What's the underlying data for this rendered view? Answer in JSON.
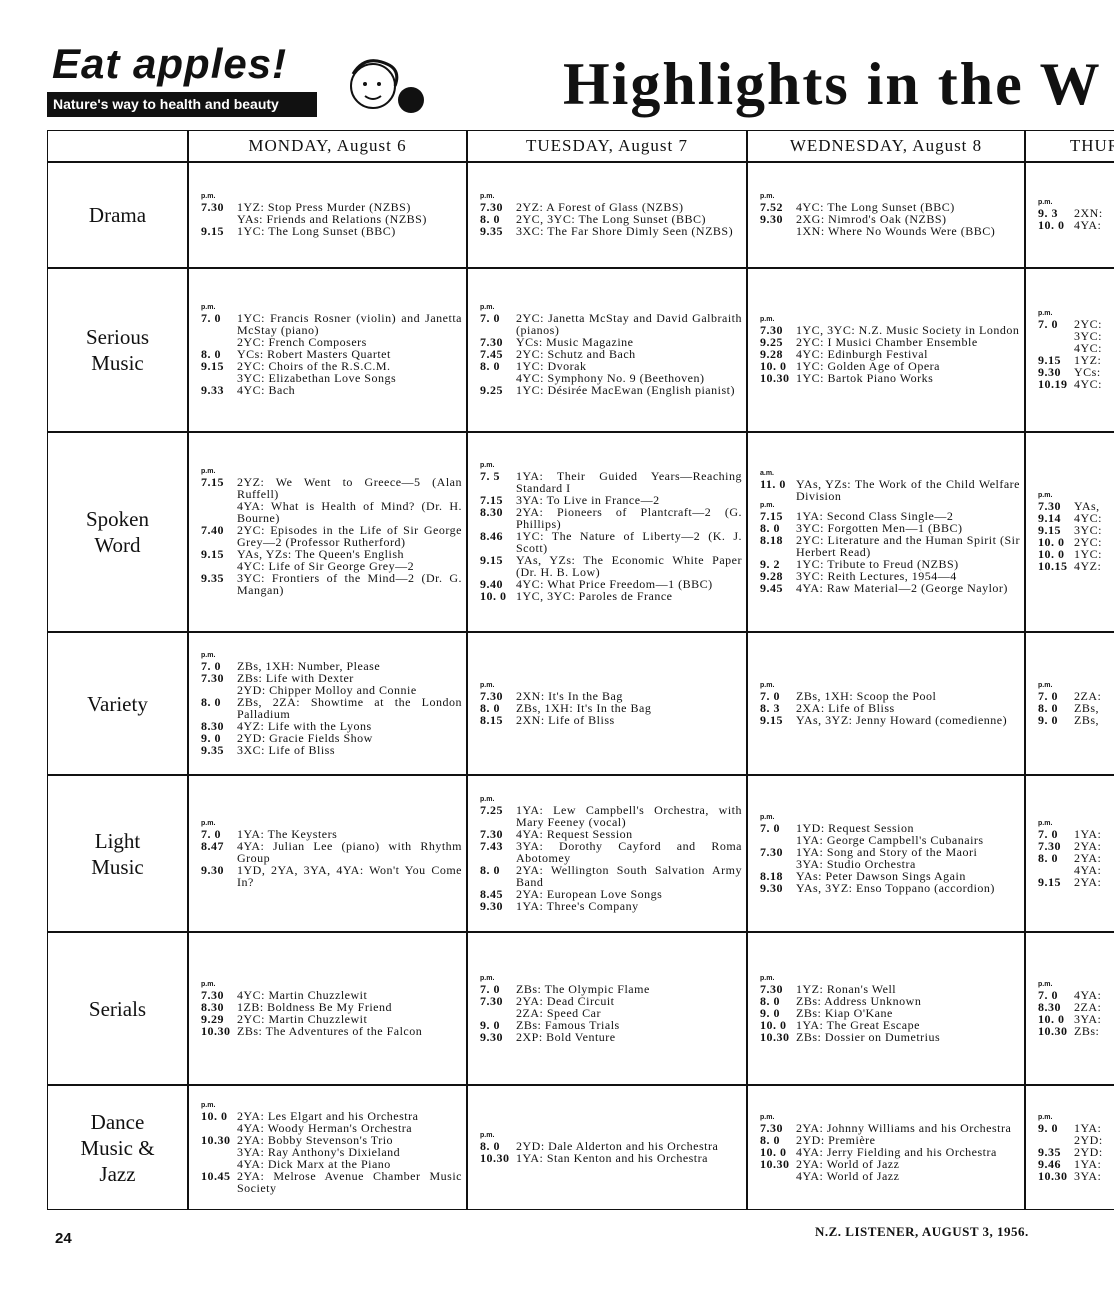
{
  "header": {
    "ad_title": "Eat apples!",
    "ad_tagline": "Nature's way to health and beauty",
    "headline": "Highlights in the W"
  },
  "table": {
    "days": [
      "MONDAY, August 6",
      "TUESDAY, August 7",
      "WEDNESDAY, August 8",
      "THUR"
    ],
    "rows": [
      {
        "label": "Drama",
        "cells": [
          [
            {
              "p": "p.m.",
              "t": "7.30",
              "x": "1YZ: Stop Press Murder (NZBS)"
            },
            {
              "x": "YAs: Friends and Relations (NZBS)"
            },
            {
              "t": "9.15",
              "x": "1YC: The Long Sunset (BBC)"
            }
          ],
          [
            {
              "p": "p.m.",
              "t": "7.30",
              "x": "2YZ: A Forest of Glass (NZBS)"
            },
            {
              "t": "8. 0",
              "x": "2YC, 3YC: The Long Sunset (BBC)"
            },
            {
              "t": "9.35",
              "x": "3XC: The Far Shore Dimly Seen (NZBS)"
            }
          ],
          [
            {
              "p": "p.m.",
              "t": "7.52",
              "x": "4YC: The Long Sunset (BBC)"
            },
            {
              "t": "9.30",
              "x": "2XG: Nimrod's Oak (NZBS)"
            },
            {
              "x": "1XN: Where No Wounds Were (BBC)"
            }
          ],
          [
            {
              "p": "p.m.",
              "t": "9. 3",
              "x": "2XN:"
            },
            {
              "t": "10. 0",
              "x": "4YA:"
            }
          ]
        ]
      },
      {
        "label": "Serious Music",
        "cells": [
          [
            {
              "p": "p.m.",
              "t": "7. 0",
              "x": "1YC: Francis Rosner (violin) and Janetta McStay (piano)"
            },
            {
              "x": "2YC: French Composers"
            },
            {
              "t": "8. 0",
              "x": "YCs: Robert Masters Quartet"
            },
            {
              "t": "9.15",
              "x": "2YC: Choirs of the R.S.C.M."
            },
            {
              "x": "3YC: Elizabethan Love Songs"
            },
            {
              "t": "9.33",
              "x": "4YC: Bach"
            }
          ],
          [
            {
              "p": "p.m.",
              "t": "7. 0",
              "x": "2YC: Janetta McStay and David Galbraith (pianos)"
            },
            {
              "t": "7.30",
              "x": "YCs: Music Magazine"
            },
            {
              "t": "7.45",
              "x": "2YC: Schutz and Bach"
            },
            {
              "t": "8. 0",
              "x": "1YC: Dvorak"
            },
            {
              "x": "4YC: Symphony No. 9 (Beethoven)"
            },
            {
              "t": "9.25",
              "x": "1YC: Désirée MacEwan (English pianist)"
            }
          ],
          [
            {
              "p": "p.m.",
              "t": "7.30",
              "x": "1YC, 3YC: N.Z. Music Society in London"
            },
            {
              "t": "9.25",
              "x": "2YC: I Musici Chamber Ensemble"
            },
            {
              "t": "9.28",
              "x": "4YC: Edinburgh Festival"
            },
            {
              "t": "10. 0",
              "x": "1YC: Golden Age of Opera"
            },
            {
              "t": "10.30",
              "x": "1YC: Bartok Piano Works"
            }
          ],
          [
            {
              "p": "p.m.",
              "t": "7. 0",
              "x": "2YC:"
            },
            {
              "x": "3YC:"
            },
            {
              "x": "4YC:"
            },
            {
              "t": "9.15",
              "x": "1YZ:"
            },
            {
              "t": "9.30",
              "x": "YCs:"
            },
            {
              "t": "10.19",
              "x": "4YC:"
            }
          ]
        ]
      },
      {
        "label": "Spoken Word",
        "cells": [
          [
            {
              "p": "p.m.",
              "t": "7.15",
              "x": "2YZ: We Went to Greece—5 (Alan Ruffell)"
            },
            {
              "x": "4YA: What is Health of Mind? (Dr. H. Bourne)"
            },
            {
              "t": "7.40",
              "x": "2YC: Episodes in the Life of Sir George Grey—2 (Professor Rutherford)"
            },
            {
              "t": "9.15",
              "x": "YAs, YZs: The Queen's English"
            },
            {
              "x": "4YC: Life of Sir George Grey—2"
            },
            {
              "t": "9.35",
              "x": "3YC: Frontiers of the Mind—2 (Dr. G. Mangan)"
            }
          ],
          [
            {
              "p": "p.m.",
              "t": "7. 5",
              "x": "1YA: Their Guided Years—Reaching Standard I"
            },
            {
              "t": "7.15",
              "x": "3YA: To Live in France—2"
            },
            {
              "t": "8.30",
              "x": "2YA: Pioneers of Plantcraft—2 (G. Phillips)"
            },
            {
              "t": "8.46",
              "x": "1YC: The Nature of Liberty—2 (K. J. Scott)"
            },
            {
              "t": "9.15",
              "x": "YAs, YZs: The Economic White Paper (Dr. H. B. Low)"
            },
            {
              "t": "9.40",
              "x": "4YC: What Price Freedom—1 (BBC)"
            },
            {
              "t": "10. 0",
              "x": "1YC, 3YC: Paroles de France"
            }
          ],
          [
            {
              "p": "a.m.",
              "t": "11. 0",
              "x": "YAs, YZs: The Work of the Child Welfare Division"
            },
            {
              "p": "p.m.",
              "t": "7.15",
              "x": "1YA: Second Class Single—2"
            },
            {
              "t": "8. 0",
              "x": "3YC: Forgotten Men—1 (BBC)"
            },
            {
              "t": "8.18",
              "x": "2YC: Literature and the Human Spirit (Sir Herbert Read)"
            },
            {
              "t": "9. 2",
              "x": "1YC: Tribute to Freud (NZBS)"
            },
            {
              "t": "9.28",
              "x": "3YC: Reith Lectures, 1954—4"
            },
            {
              "t": "9.45",
              "x": "4YA: Raw Material—2 (George Naylor)"
            }
          ],
          [
            {
              "p": "p.m.",
              "t": "7.30",
              "x": "YAs,"
            },
            {
              "t": "9.14",
              "x": "4YC:"
            },
            {
              "t": "9.15",
              "x": "3YC:"
            },
            {
              "t": "10. 0",
              "x": "2YC:"
            },
            {
              "t": "10. 0",
              "x": "1YC:"
            },
            {
              "t": "10.15",
              "x": "4YZ:"
            }
          ]
        ]
      },
      {
        "label": "Variety",
        "cells": [
          [
            {
              "p": "p.m.",
              "t": "7. 0",
              "x": "ZBs, 1XH: Number, Please"
            },
            {
              "t": "7.30",
              "x": "ZBs: Life with Dexter"
            },
            {
              "x": "2YD: Chipper Molloy and Connie"
            },
            {
              "t": "8. 0",
              "x": "ZBs, 2ZA: Showtime at the London Palladium"
            },
            {
              "t": "8.30",
              "x": "4YZ: Life with the Lyons"
            },
            {
              "t": "9. 0",
              "x": "2YD: Gracie Fields Show"
            },
            {
              "t": "9.35",
              "x": "3XC: Life of Bliss"
            }
          ],
          [
            {
              "p": "p.m.",
              "t": "7.30",
              "x": "2XN: It's In the Bag"
            },
            {
              "t": "8. 0",
              "x": "ZBs, 1XH: It's In the Bag"
            },
            {
              "t": "8.15",
              "x": "2XN: Life of Bliss"
            }
          ],
          [
            {
              "p": "p.m.",
              "t": "7. 0",
              "x": "ZBs, 1XH: Scoop the Pool"
            },
            {
              "t": "8. 3",
              "x": "2XA: Life of Bliss"
            },
            {
              "t": "9.15",
              "x": "YAs, 3YZ: Jenny Howard (comedienne)"
            }
          ],
          [
            {
              "p": "p.m.",
              "t": "7. 0",
              "x": "2ZA:"
            },
            {
              "t": "8. 0",
              "x": "ZBs,"
            },
            {
              "t": "9. 0",
              "x": "ZBs,"
            }
          ]
        ]
      },
      {
        "label": "Light Music",
        "cells": [
          [
            {
              "p": "p.m.",
              "t": "7. 0",
              "x": "1YA: The Keysters"
            },
            {
              "t": "8.47",
              "x": "4YA: Julian Lee (piano) with Rhythm Group"
            },
            {
              "t": "9.30",
              "x": "1YD, 2YA, 3YA, 4YA: Won't You Come In?"
            }
          ],
          [
            {
              "p": "p.m.",
              "t": "7.25",
              "x": "1YA: Lew Campbell's Orchestra, with Mary Feeney (vocal)"
            },
            {
              "t": "7.30",
              "x": "4YA: Request Session"
            },
            {
              "t": "7.43",
              "x": "3YA: Dorothy Cayford and Roma Abotomey"
            },
            {
              "t": "8. 0",
              "x": "2YA: Wellington South Salvation Army Band"
            },
            {
              "t": "8.45",
              "x": "2YA: European Love Songs"
            },
            {
              "t": "9.30",
              "x": "1YA: Three's Company"
            }
          ],
          [
            {
              "p": "p.m.",
              "t": "7. 0",
              "x": "1YD: Request Session"
            },
            {
              "x": "1YA: George Campbell's Cubanairs"
            },
            {
              "t": "7.30",
              "x": "1YA: Song and Story of the Maori"
            },
            {
              "x": "3YA: Studio Orchestra"
            },
            {
              "t": "8.18",
              "x": "YAs: Peter Dawson Sings Again"
            },
            {
              "t": "9.30",
              "x": "YAs, 3YZ: Enso Toppano (accordion)"
            }
          ],
          [
            {
              "p": "p.m.",
              "t": "7. 0",
              "x": "1YA:"
            },
            {
              "t": "7.30",
              "x": "2YA:"
            },
            {
              "t": "8. 0",
              "x": "2YA:"
            },
            {
              "x": "4YA:"
            },
            {
              "t": "9.15",
              "x": "2YA:"
            }
          ]
        ]
      },
      {
        "label": "Serials",
        "cells": [
          [
            {
              "p": "p.m.",
              "t": "7.30",
              "x": "4YC: Martin Chuzzlewit"
            },
            {
              "t": "8.30",
              "x": "1ZB: Boldness Be My Friend"
            },
            {
              "t": "9.29",
              "x": "2YC: Martin Chuzzlewit"
            },
            {
              "t": "10.30",
              "x": "ZBs: The Adventures of the Falcon"
            }
          ],
          [
            {
              "p": "p.m.",
              "t": "7. 0",
              "x": "ZBs: The Olympic Flame"
            },
            {
              "t": "7.30",
              "x": "2YA: Dead Circuit"
            },
            {
              "x": "2ZA: Speed Car"
            },
            {
              "t": "9. 0",
              "x": "ZBs: Famous Trials"
            },
            {
              "t": "9.30",
              "x": "2XP: Bold Venture"
            }
          ],
          [
            {
              "p": "p.m.",
              "t": "7.30",
              "x": "1YZ: Ronan's Well"
            },
            {
              "t": "8. 0",
              "x": "ZBs: Address Unknown"
            },
            {
              "t": "9. 0",
              "x": "ZBs: Kiap O'Kane"
            },
            {
              "t": "10. 0",
              "x": "1YA: The Great Escape"
            },
            {
              "t": "10.30",
              "x": "ZBs: Dossier on Dumetrius"
            }
          ],
          [
            {
              "p": "p.m.",
              "t": "7. 0",
              "x": "4YA:"
            },
            {
              "t": "8.30",
              "x": "2ZA:"
            },
            {
              "t": "10. 0",
              "x": "3YA:"
            },
            {
              "t": "10.30",
              "x": "ZBs:"
            }
          ]
        ]
      },
      {
        "label": "Dance Music & Jazz",
        "cells": [
          [
            {
              "p": "p.m.",
              "t": "10. 0",
              "x": "2YA: Les Elgart and his Orchestra"
            },
            {
              "x": "4YA: Woody Herman's Orchestra"
            },
            {
              "t": "10.30",
              "x": "2YA: Bobby Stevenson's Trio"
            },
            {
              "x": "3YA: Ray Anthony's Dixieland"
            },
            {
              "x": "4YA: Dick Marx at the Piano"
            },
            {
              "t": "10.45",
              "x": "2YA: Melrose Avenue Chamber Music Society"
            }
          ],
          [
            {
              "p": "p.m.",
              "t": "8. 0",
              "x": "2YD: Dale Alderton and his Orchestra"
            },
            {
              "t": "10.30",
              "x": "1YA: Stan Kenton and his Orchestra"
            }
          ],
          [
            {
              "p": "p.m.",
              "t": "7.30",
              "x": "2YA: Johnny Williams and his Orchestra"
            },
            {
              "t": "8. 0",
              "x": "2YD: Première"
            },
            {
              "t": "10. 0",
              "x": "4YA: Jerry Fielding and his Orchestra"
            },
            {
              "t": "10.30",
              "x": "2YA: World of Jazz"
            },
            {
              "x": "4YA: World of Jazz"
            }
          ],
          [
            {
              "p": "p.m.",
              "t": "9. 0",
              "x": "1YA:"
            },
            {
              "x": "2YD:"
            },
            {
              "t": "9.35",
              "x": "2YD:"
            },
            {
              "t": "9.46",
              "x": "1YA:"
            },
            {
              "t": "10.30",
              "x": "3YA:"
            }
          ]
        ]
      }
    ]
  },
  "footer": {
    "page": "24",
    "publication": "N.Z. LISTENER, AUGUST 3, 1956."
  }
}
